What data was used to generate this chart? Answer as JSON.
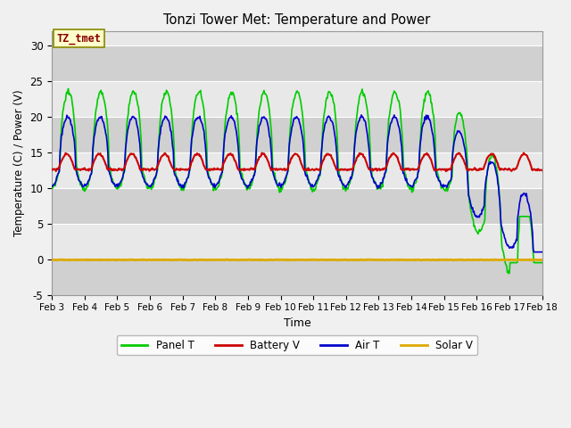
{
  "title": "Tonzi Tower Met: Temperature and Power",
  "xlabel": "Time",
  "ylabel": "Temperature (C) / Power (V)",
  "ylim": [
    -5,
    32
  ],
  "yticks": [
    -5,
    0,
    5,
    10,
    15,
    20,
    25,
    30
  ],
  "x_labels": [
    "Feb 3",
    "Feb 4",
    "Feb 5",
    "Feb 6",
    "Feb 7",
    "Feb 8",
    "Feb 9",
    "Feb 10",
    "Feb 11",
    "Feb 12",
    "Feb 13",
    "Feb 14",
    "Feb 15",
    "Feb 16",
    "Feb 17",
    "Feb 18"
  ],
  "colors": {
    "panel_t": "#00cc00",
    "battery_v": "#cc0000",
    "air_t": "#0000cc",
    "solar_v": "#ddaa00"
  },
  "fig_bg": "#f0f0f0",
  "plot_bg_light": "#e8e8e8",
  "plot_bg_dark": "#d0d0d0",
  "label_box_color": "#ffffcc",
  "label_box_text": "TZ_tmet",
  "label_box_edge": "#888800",
  "label_box_text_color": "#880000",
  "legend_entries": [
    "Panel T",
    "Battery V",
    "Air T",
    "Solar V"
  ],
  "n_days": 15,
  "pts_per_day": 48
}
